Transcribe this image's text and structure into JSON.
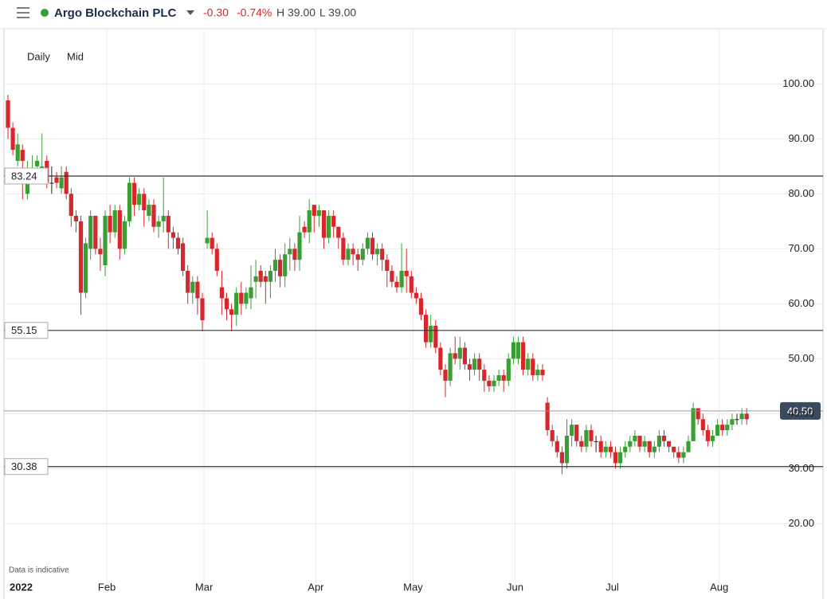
{
  "header": {
    "title": "Argo Blockchain PLC",
    "change": "-0.30",
    "change_pct": "-0.74%",
    "high": "H 39.00",
    "low": "L 39.00"
  },
  "controls": [
    "Daily",
    "Mid"
  ],
  "note": "Data is indicative",
  "chart_data": {
    "type": "candlestick",
    "up_color": "#3a9e35",
    "down_color": "#d7262c",
    "grid": true,
    "categories": [
      "2022",
      null,
      null,
      null,
      null,
      null,
      null,
      null,
      null,
      null,
      null,
      null,
      null,
      null,
      null,
      null,
      null,
      null,
      null,
      null,
      null,
      "Feb",
      null,
      null,
      null,
      null,
      null,
      null,
      null,
      null,
      null,
      null,
      null,
      null,
      null,
      null,
      null,
      null,
      null,
      null,
      null,
      "Mar",
      null,
      null,
      null,
      null,
      null,
      null,
      null,
      null,
      null,
      null,
      null,
      null,
      null,
      null,
      null,
      null,
      null,
      null,
      null,
      null,
      null,
      null,
      "Apr",
      null,
      null,
      null,
      null,
      null,
      null,
      null,
      null,
      null,
      null,
      null,
      null,
      null,
      null,
      null,
      null,
      null,
      null,
      null,
      "May",
      null,
      null,
      null,
      null,
      null,
      null,
      null,
      null,
      null,
      null,
      null,
      null,
      null,
      null,
      null,
      null,
      null,
      null,
      null,
      null,
      "Jun",
      null,
      null,
      null,
      null,
      null,
      null,
      null,
      null,
      null,
      null,
      null,
      null,
      null,
      null,
      null,
      null,
      null,
      null,
      null,
      "Jul",
      null,
      null,
      null,
      null,
      null,
      null,
      null,
      null,
      null,
      null,
      null,
      null,
      null,
      null,
      null,
      null,
      null,
      null,
      null,
      null,
      null,
      "Aug",
      null,
      null,
      null,
      null,
      null
    ],
    "open": [
      97,
      92,
      86,
      88,
      80,
      83,
      85,
      84,
      86,
      82,
      83,
      81,
      84,
      80,
      76,
      75,
      62,
      70,
      76,
      70,
      67,
      76,
      73,
      77,
      70,
      75,
      82,
      78,
      80,
      76,
      78,
      74,
      75,
      76,
      73,
      72,
      71,
      66,
      62,
      64,
      61,
      71,
      72,
      70,
      63,
      61,
      59,
      58,
      62,
      60,
      61,
      64,
      66,
      65,
      64,
      66,
      68,
      65,
      69,
      70,
      68,
      74,
      73,
      78,
      76,
      77,
      72,
      76,
      74,
      72,
      68,
      70,
      69,
      68,
      70,
      72,
      69,
      70,
      68,
      66,
      64,
      63,
      66,
      65,
      62,
      61,
      58,
      53,
      56,
      52,
      48,
      46,
      51,
      50,
      52,
      49,
      48,
      50,
      48,
      46,
      45,
      46,
      47,
      46,
      50,
      50,
      53,
      48,
      50,
      47,
      48,
      42,
      37,
      35,
      33,
      31,
      36,
      38,
      35,
      34,
      37,
      35,
      35,
      33,
      34,
      33,
      31,
      33,
      34,
      35,
      36,
      34,
      35,
      33,
      34,
      36,
      35,
      34,
      33,
      32,
      33,
      35,
      41,
      39,
      37,
      35,
      36,
      38,
      37,
      38,
      39,
      39,
      40
    ],
    "high": [
      98,
      93,
      91,
      89,
      86,
      87,
      87,
      91,
      87,
      85,
      84,
      85,
      85,
      81,
      77,
      76,
      72,
      77,
      76,
      72,
      77,
      78,
      78,
      78,
      76,
      83,
      83,
      81,
      81,
      79,
      79,
      76,
      83,
      77,
      74,
      73,
      72,
      67,
      65,
      65,
      62,
      77,
      73,
      71,
      66,
      62,
      60,
      63,
      64,
      63,
      67,
      68,
      67,
      66,
      67,
      70,
      69,
      71,
      72,
      71,
      76,
      75,
      79,
      78,
      78,
      77,
      77,
      77,
      74,
      73,
      71,
      71,
      70,
      71,
      73,
      73,
      71,
      71,
      69,
      67,
      65,
      71,
      70,
      66,
      63,
      62,
      59,
      58,
      57,
      53,
      49,
      52,
      54,
      54,
      53,
      50,
      51,
      51,
      49,
      47,
      47,
      48,
      48,
      51,
      54,
      54,
      54,
      51,
      51,
      49,
      49,
      43,
      38,
      36,
      34,
      39,
      39,
      38,
      36,
      38,
      38,
      36,
      36,
      35,
      35,
      34,
      34,
      35,
      36,
      37,
      36,
      36,
      35,
      35,
      37,
      37,
      35,
      34,
      34,
      34,
      36,
      42,
      41,
      40,
      38,
      37,
      39,
      39,
      39,
      40,
      40,
      41,
      41
    ],
    "low": [
      90,
      87,
      85,
      79,
      79,
      82,
      83,
      83,
      81,
      80,
      81,
      80,
      79,
      74,
      73,
      58,
      61,
      68,
      69,
      66,
      65,
      71,
      72,
      68,
      69,
      74,
      76,
      77,
      74,
      75,
      73,
      72,
      73,
      70,
      70,
      69,
      65,
      60,
      60,
      58,
      55,
      70,
      69,
      65,
      58,
      57,
      55,
      56,
      58,
      59,
      59,
      61,
      63,
      60,
      61,
      64,
      63,
      63,
      66,
      66,
      66,
      72,
      71,
      73,
      74,
      70,
      71,
      72,
      70,
      67,
      67,
      67,
      66,
      67,
      69,
      68,
      67,
      66,
      63,
      63,
      62,
      62,
      62,
      61,
      60,
      57,
      52,
      52,
      51,
      47,
      43,
      45,
      49,
      48,
      48,
      46,
      47,
      46,
      44,
      44,
      44,
      45,
      44,
      45,
      49,
      49,
      47,
      47,
      46,
      46,
      46,
      36,
      34,
      32,
      29,
      30,
      34,
      34,
      33,
      33,
      34,
      33,
      32,
      32,
      32,
      30,
      30,
      32,
      33,
      34,
      33,
      33,
      32,
      32,
      33,
      34,
      33,
      32,
      31,
      31,
      33,
      35,
      38,
      36,
      34,
      34,
      36,
      36,
      36,
      37,
      38,
      38,
      38
    ],
    "close": [
      92,
      88,
      89,
      86,
      83,
      84,
      86,
      85,
      82,
      82,
      82,
      83,
      80,
      76,
      75,
      62,
      71,
      76,
      70,
      69,
      76,
      73,
      77,
      70,
      75,
      82,
      78,
      80,
      77,
      78,
      74,
      75,
      76,
      73,
      72,
      70,
      66,
      62,
      64,
      61,
      57,
      72,
      70,
      66,
      61,
      59,
      58,
      62,
      60,
      62,
      63,
      65,
      64,
      64,
      66,
      68,
      65,
      69,
      70,
      68,
      73,
      73,
      77,
      76,
      77,
      72,
      76,
      74,
      72,
      68,
      70,
      69,
      68,
      70,
      72,
      69,
      70,
      68,
      66,
      64,
      63,
      66,
      65,
      62,
      61,
      58,
      53,
      56,
      52,
      48,
      46,
      51,
      50,
      52,
      49,
      48,
      50,
      48,
      46,
      45,
      46,
      47,
      46,
      50,
      53,
      53,
      48,
      50,
      47,
      48,
      47,
      37,
      35,
      33,
      31,
      36,
      38,
      35,
      34,
      37,
      35,
      35,
      33,
      34,
      33,
      31,
      33,
      34,
      35,
      36,
      34,
      35,
      33,
      34,
      36,
      35,
      34,
      33,
      32,
      33,
      35,
      41,
      39,
      37,
      35,
      36,
      38,
      37,
      38,
      39,
      39,
      40,
      39
    ],
    "ylim": [
      7.3,
      109.9
    ],
    "yticks": [
      {
        "value": 20,
        "label": "20.00"
      },
      {
        "value": 30,
        "label": "30.00"
      },
      {
        "value": 40,
        "label": "40.00"
      },
      {
        "value": 50,
        "label": "50.00"
      },
      {
        "value": 60,
        "label": "60.00"
      },
      {
        "value": 70,
        "label": "70.00"
      },
      {
        "value": 80,
        "label": "80.00"
      },
      {
        "value": 90,
        "label": "90.00"
      },
      {
        "value": 100,
        "label": "100.00"
      }
    ],
    "levels": [
      {
        "value": 83.24,
        "label": "83.24"
      },
      {
        "value": 55.15,
        "label": "55.15"
      },
      {
        "value": 30.38,
        "label": "30.38"
      }
    ],
    "last_price": {
      "value": 40.5,
      "label": "40.50"
    }
  }
}
